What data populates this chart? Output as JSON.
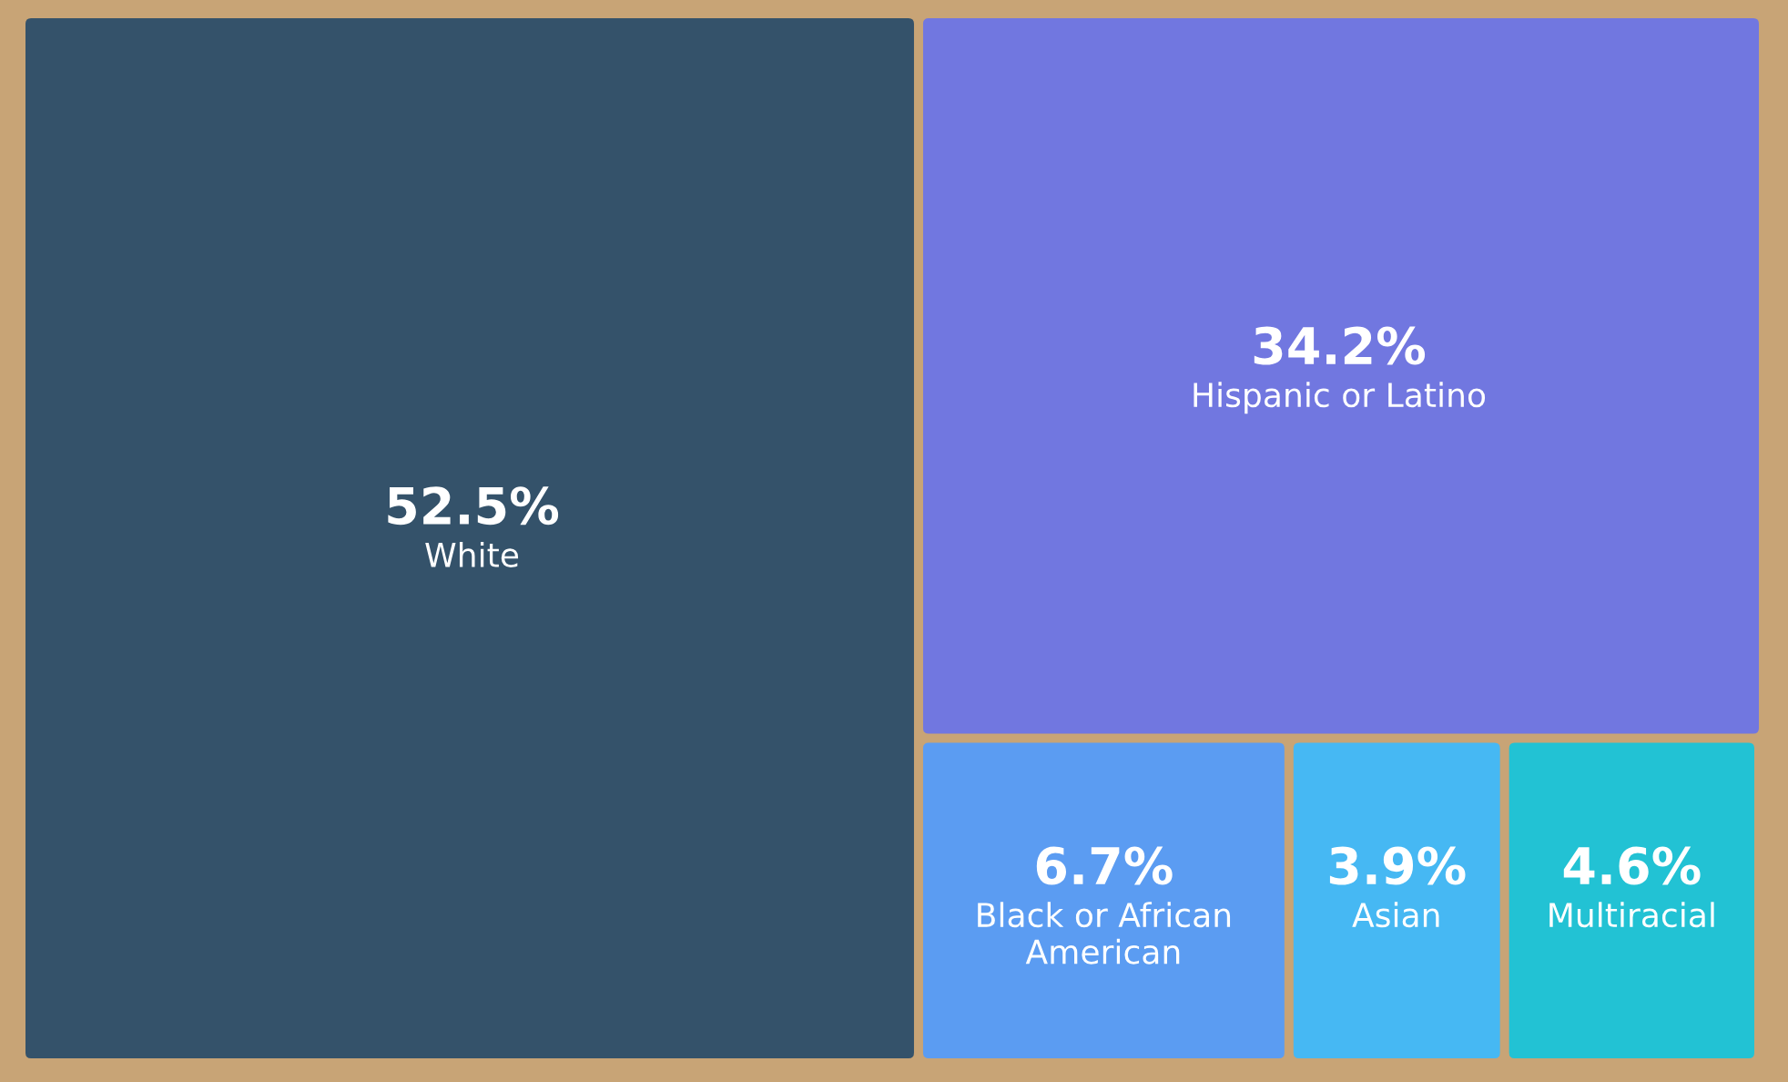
{
  "chart_data": {
    "type": "other",
    "categories": [
      "White",
      "Hispanic or Latino",
      "Black or African American",
      "Asian",
      "Multiracial"
    ],
    "values": [
      52.5,
      34.2,
      6.7,
      3.9,
      4.6
    ],
    "value_labels": [
      "52.5%",
      "34.2%",
      "6.7%",
      "3.9%",
      "4.6%"
    ],
    "colors": [
      "#34526a",
      "#7177e0",
      "#5b9cf2",
      "#46b8f3",
      "#22c2d4"
    ]
  }
}
